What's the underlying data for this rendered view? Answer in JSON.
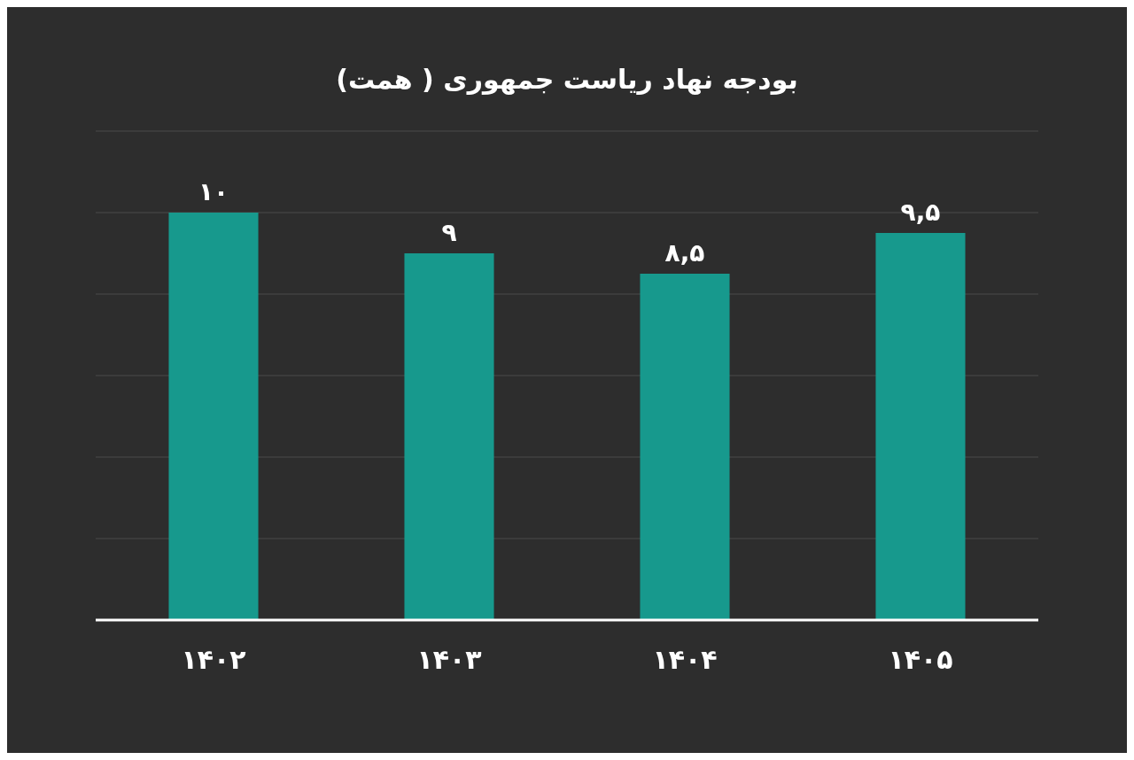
{
  "chart_data": {
    "type": "bar",
    "title": "بودجه نهاد ریاست جمهوری ( همت)",
    "categories": [
      "۱۴۰۲",
      "۱۴۰۳",
      "۱۴۰۴",
      "۱۴۰۵"
    ],
    "values": [
      10,
      9,
      8.5,
      9.5
    ],
    "value_labels": [
      "۱۰",
      "۹",
      "۸,۵",
      "۹,۵"
    ],
    "color": "#17998d",
    "ylim": [
      0,
      12
    ],
    "yticks": [
      {
        "value": 2,
        "label": null
      },
      {
        "value": 4,
        "label": null
      },
      {
        "value": 6,
        "label": null
      },
      {
        "value": 8,
        "label": null
      },
      {
        "value": 10,
        "label": null
      },
      {
        "value": 12,
        "label": null
      }
    ],
    "grid": "y"
  }
}
